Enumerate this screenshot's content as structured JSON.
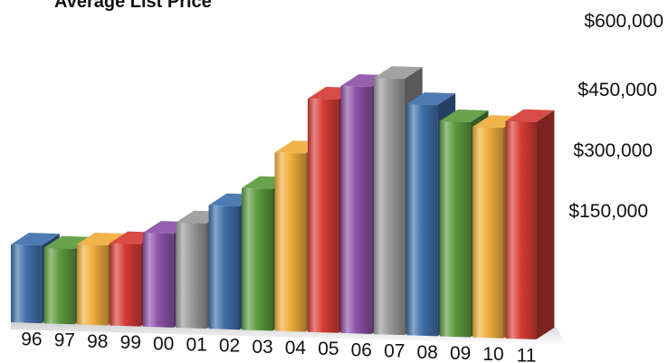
{
  "chart_data": {
    "type": "bar",
    "title": "Average List Price",
    "xlabel": "",
    "ylabel": "",
    "categories": [
      "96",
      "97",
      "98",
      "99",
      "00",
      "01",
      "02",
      "03",
      "04",
      "05",
      "06",
      "07",
      "08",
      "09",
      "10",
      "11"
    ],
    "values": [
      170000,
      165000,
      175000,
      180000,
      205000,
      230000,
      270000,
      310000,
      390000,
      510000,
      540000,
      560000,
      505000,
      470000,
      460000,
      475000
    ],
    "y_ticks": [
      "$150,000",
      "$300,000",
      "$450,000",
      "$600,000"
    ],
    "ylim": [
      0,
      650000
    ],
    "grid": false,
    "legend": "none",
    "style": "3d-bars",
    "colors": [
      "#3f6faa",
      "#5c9a3e",
      "#f0ae3e",
      "#d63b35",
      "#8c52a8",
      "#9a9a9a",
      "#3f6faa",
      "#5c9a3e",
      "#f0ae3e",
      "#d63b35",
      "#8c52a8",
      "#9a9a9a",
      "#3f6faa",
      "#5c9a3e",
      "#f0ae3e",
      "#d63b35"
    ]
  }
}
